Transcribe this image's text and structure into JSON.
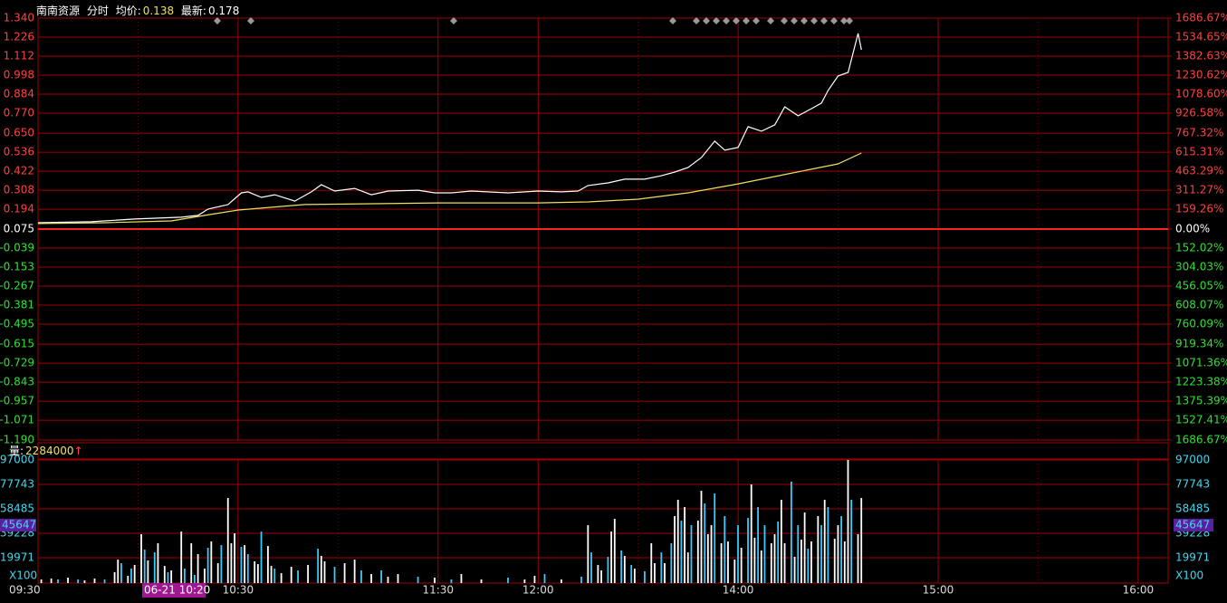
{
  "chart_data": [
    {
      "type": "line",
      "title": "南南资源",
      "mode": "分时",
      "avg_label": "均价:",
      "avg_value": 0.138,
      "last_label": "最新:",
      "last_value": 0.178,
      "xlim": [
        0,
        339
      ],
      "xgrid_minor": [
        30,
        90,
        180,
        240,
        300
      ],
      "ylim": [
        -1.19,
        1.34
      ],
      "yticks": [
        {
          "value": 1.34,
          "label": "1.340"
        },
        1.226,
        1.112,
        0.998,
        0.884,
        {
          "value": 0.77,
          "label": "0.770"
        },
        {
          "value": 0.65,
          "label": "0.650"
        },
        0.536,
        0.422,
        0.308,
        0.194,
        0.075,
        -0.039,
        -0.153,
        -0.267,
        -0.381,
        -0.495,
        -0.615,
        -0.729,
        -0.843,
        -0.957,
        -1.071,
        {
          "value": -1.19,
          "label": "-1.190"
        }
      ],
      "y2lim": [
        -1686.67,
        1686.67
      ],
      "y2ticks": [
        {
          "value": 1686.67,
          "label": "1686.67%"
        },
        {
          "value": 1534.65,
          "label": "1534.65%"
        },
        {
          "value": 1382.63,
          "label": "1382.63%"
        },
        {
          "value": 1230.62,
          "label": "1230.62%"
        },
        {
          "value": 1078.6,
          "label": "1078.60%"
        },
        {
          "value": 926.58,
          "label": "926.58%"
        },
        {
          "value": 767.32,
          "label": "767.32%"
        },
        {
          "value": 615.31,
          "label": "615.31%"
        },
        {
          "value": 463.29,
          "label": "463.29%"
        },
        {
          "value": 311.27,
          "label": "311.27%"
        },
        {
          "value": 159.26,
          "label": "159.26%"
        },
        {
          "value": 0,
          "label": "0.00%"
        },
        {
          "value": -152.02,
          "label": "152.02%"
        },
        {
          "value": -304.03,
          "label": "304.03%"
        },
        {
          "value": -456.05,
          "label": "456.05%"
        },
        {
          "value": -608.07,
          "label": "608.07%"
        },
        {
          "value": -760.09,
          "label": "760.09%"
        },
        {
          "value": -919.34,
          "label": "919.34%"
        },
        {
          "value": -1071.36,
          "label": "1071.36%"
        },
        {
          "value": -1223.38,
          "label": "1223.38%"
        },
        {
          "value": -1375.39,
          "label": "1375.39%"
        },
        {
          "value": -1527.41,
          "label": "1527.41%"
        },
        {
          "value": -1686.67,
          "label": "1686.67%"
        }
      ],
      "grid": true,
      "series": [
        {
          "color": "#ffffff",
          "x": [
            0,
            16,
            29,
            43,
            48,
            51,
            57,
            61,
            63,
            67,
            71,
            77,
            82,
            85,
            89,
            95,
            100,
            105,
            114,
            119,
            124,
            130,
            141,
            150,
            157,
            162,
            165,
            171,
            176,
            182,
            187,
            191,
            195,
            199,
            203,
            206,
            210,
            213,
            217,
            221,
            224,
            228,
            232,
            235,
            237,
            240,
            243,
            246,
            247
          ],
          "values": [
            0.113,
            0.119,
            0.135,
            0.146,
            0.157,
            0.195,
            0.222,
            0.292,
            0.298,
            0.265,
            0.281,
            0.243,
            0.298,
            0.341,
            0.303,
            0.319,
            0.281,
            0.303,
            0.308,
            0.292,
            0.292,
            0.303,
            0.292,
            0.303,
            0.298,
            0.303,
            0.336,
            0.352,
            0.374,
            0.374,
            0.395,
            0.417,
            0.444,
            0.504,
            0.602,
            0.548,
            0.564,
            0.689,
            0.662,
            0.7,
            0.808,
            0.754,
            0.797,
            0.83,
            0.906,
            0.993,
            1.014,
            1.248,
            1.15
          ]
        },
        {
          "color": "#f0e060",
          "x": [
            0,
            20,
            40,
            50,
            60,
            80,
            120,
            150,
            165,
            180,
            195,
            210,
            225,
            240,
            247
          ],
          "values": [
            0.108,
            0.113,
            0.124,
            0.157,
            0.189,
            0.222,
            0.232,
            0.232,
            0.238,
            0.254,
            0.292,
            0.346,
            0.406,
            0.466,
            0.531
          ]
        }
      ]
    },
    {
      "type": "bar",
      "title": "量:",
      "total": 2284000,
      "trend": "↑",
      "unit": "X100",
      "cursor_time": "06-21 10:20",
      "cursor_value": 45647,
      "xlim": [
        0,
        339
      ],
      "xticks": [
        {
          "value": 0,
          "label": "09:30"
        },
        {
          "value": 60,
          "label": "10:30"
        },
        {
          "value": 120,
          "label": "11:30"
        },
        {
          "value": 150,
          "label": "12:00"
        },
        {
          "value": 210,
          "label": "14:00"
        },
        {
          "value": 270,
          "label": "15:00"
        },
        {
          "value": 330,
          "label": "16:00"
        }
      ],
      "ylim": [
        0,
        97000
      ],
      "yticks": [
        97000,
        77743,
        58485,
        39228,
        19971
      ],
      "x": [
        1,
        4,
        6,
        9,
        12,
        14,
        17,
        20,
        23,
        24,
        25,
        27,
        28,
        29,
        31,
        32,
        33,
        35,
        36,
        38,
        39,
        40,
        43,
        44,
        46,
        47,
        48,
        50,
        51,
        52,
        54,
        55,
        57,
        58,
        59,
        61,
        62,
        63,
        65,
        66,
        67,
        69,
        70,
        71,
        73,
        76,
        78,
        81,
        84,
        85,
        86,
        89,
        92,
        95,
        97,
        100,
        103,
        105,
        108,
        114,
        119,
        124,
        127,
        133,
        141,
        146,
        149,
        152,
        157,
        163,
        165,
        166,
        168,
        169,
        171,
        172,
        173,
        175,
        176,
        178,
        179,
        182,
        184,
        185,
        187,
        188,
        190,
        191,
        192,
        193,
        194,
        195,
        196,
        198,
        199,
        200,
        201,
        202,
        203,
        205,
        206,
        207,
        209,
        210,
        211,
        213,
        214,
        215,
        216,
        217,
        218,
        220,
        221,
        222,
        223,
        224,
        226,
        227,
        228,
        229,
        230,
        231,
        232,
        234,
        235,
        236,
        237,
        239,
        240,
        241,
        242,
        243,
        244,
        246,
        247
      ],
      "values": [
        2900,
        3600,
        2900,
        4300,
        2900,
        2100,
        3600,
        2900,
        8600,
        18500,
        15700,
        5700,
        11400,
        14300,
        38500,
        26400,
        17800,
        24200,
        31400,
        13500,
        8600,
        10000,
        40600,
        11400,
        31400,
        6400,
        22800,
        11400,
        27800,
        32800,
        15700,
        29900,
        67000,
        31400,
        39200,
        28500,
        29900,
        22800,
        17100,
        15000,
        40600,
        29200,
        13500,
        11400,
        7800,
        12800,
        10000,
        14300,
        27100,
        21400,
        17100,
        12800,
        15700,
        18500,
        10000,
        7100,
        10000,
        5000,
        7100,
        5000,
        4300,
        2900,
        7100,
        2900,
        4300,
        2900,
        5700,
        7100,
        2900,
        5000,
        45600,
        24200,
        14300,
        10000,
        20700,
        40600,
        50600,
        25700,
        21400,
        14300,
        11400,
        9300,
        31400,
        15700,
        24200,
        15700,
        31400,
        52800,
        65600,
        49200,
        59900,
        24200,
        45600,
        49200,
        72700,
        62700,
        38500,
        45600,
        70600,
        31400,
        52800,
        32800,
        18500,
        45600,
        27800,
        51300,
        77700,
        35700,
        59900,
        25700,
        45600,
        31400,
        38500,
        48500,
        65600,
        31400,
        79900,
        20700,
        45600,
        34200,
        55600,
        27100,
        32800,
        52800,
        45600,
        65600,
        59900,
        34900,
        45600,
        52800,
        32800,
        97000,
        65600,
        38500,
        67000
      ],
      "colors": [
        "#fff",
        "#fff",
        "#3cf",
        "#fff",
        "#3cf",
        "#fff",
        "#fff",
        "#3cf",
        "#fff",
        "#fff",
        "#3cf",
        "#fff",
        "#3cf",
        "#fff",
        "#fff",
        "#3cf",
        "#fff",
        "#3cf",
        "#fff",
        "#fff",
        "#3cf",
        "#fff",
        "#fff",
        "#3cf",
        "#fff",
        "#3cf",
        "#fff",
        "#fff",
        "#3cf",
        "#fff",
        "#fff",
        "#3cf",
        "#fff",
        "#fff",
        "#fff",
        "#3cf",
        "#fff",
        "#3cf",
        "#fff",
        "#fff",
        "#3cf",
        "#fff",
        "#fff",
        "#3cf",
        "#fff",
        "#fff",
        "#3cf",
        "#fff",
        "#3cf",
        "#fff",
        "#fff",
        "#3cf",
        "#fff",
        "#fff",
        "#3cf",
        "#fff",
        "#3cf",
        "#fff",
        "#fff",
        "#3cf",
        "#fff",
        "#3cf",
        "#fff",
        "#fff",
        "#3cf",
        "#fff",
        "#fff",
        "#3cf",
        "#fff",
        "#3cf",
        "#fff",
        "#3cf",
        "#fff",
        "#fff",
        "#3cf",
        "#fff",
        "#fff",
        "#3cf",
        "#fff",
        "#3cf",
        "#fff",
        "#3cf",
        "#fff",
        "#fff",
        "#3cf",
        "#fff",
        "#3cf",
        "#fff",
        "#fff",
        "#3cf",
        "#fff",
        "#fff",
        "#3cf",
        "#fff",
        "#fff",
        "#3cf",
        "#fff",
        "#fff",
        "#3cf",
        "#fff",
        "#3cf",
        "#fff",
        "#fff",
        "#3cf",
        "#fff",
        "#3cf",
        "#fff",
        "#fff",
        "#3cf",
        "#fff",
        "#3cf",
        "#fff",
        "#fff",
        "#3cf",
        "#fff",
        "#fff",
        "#3cf",
        "#fff",
        "#3cf",
        "#fff",
        "#fff",
        "#3cf",
        "#fff",
        "#fff",
        "#3cf",
        "#fff",
        "#3cf",
        "#fff",
        "#fff",
        "#3cf",
        "#fff",
        "#fff",
        "#3cf",
        "#fff",
        "#fff"
      ]
    }
  ]
}
